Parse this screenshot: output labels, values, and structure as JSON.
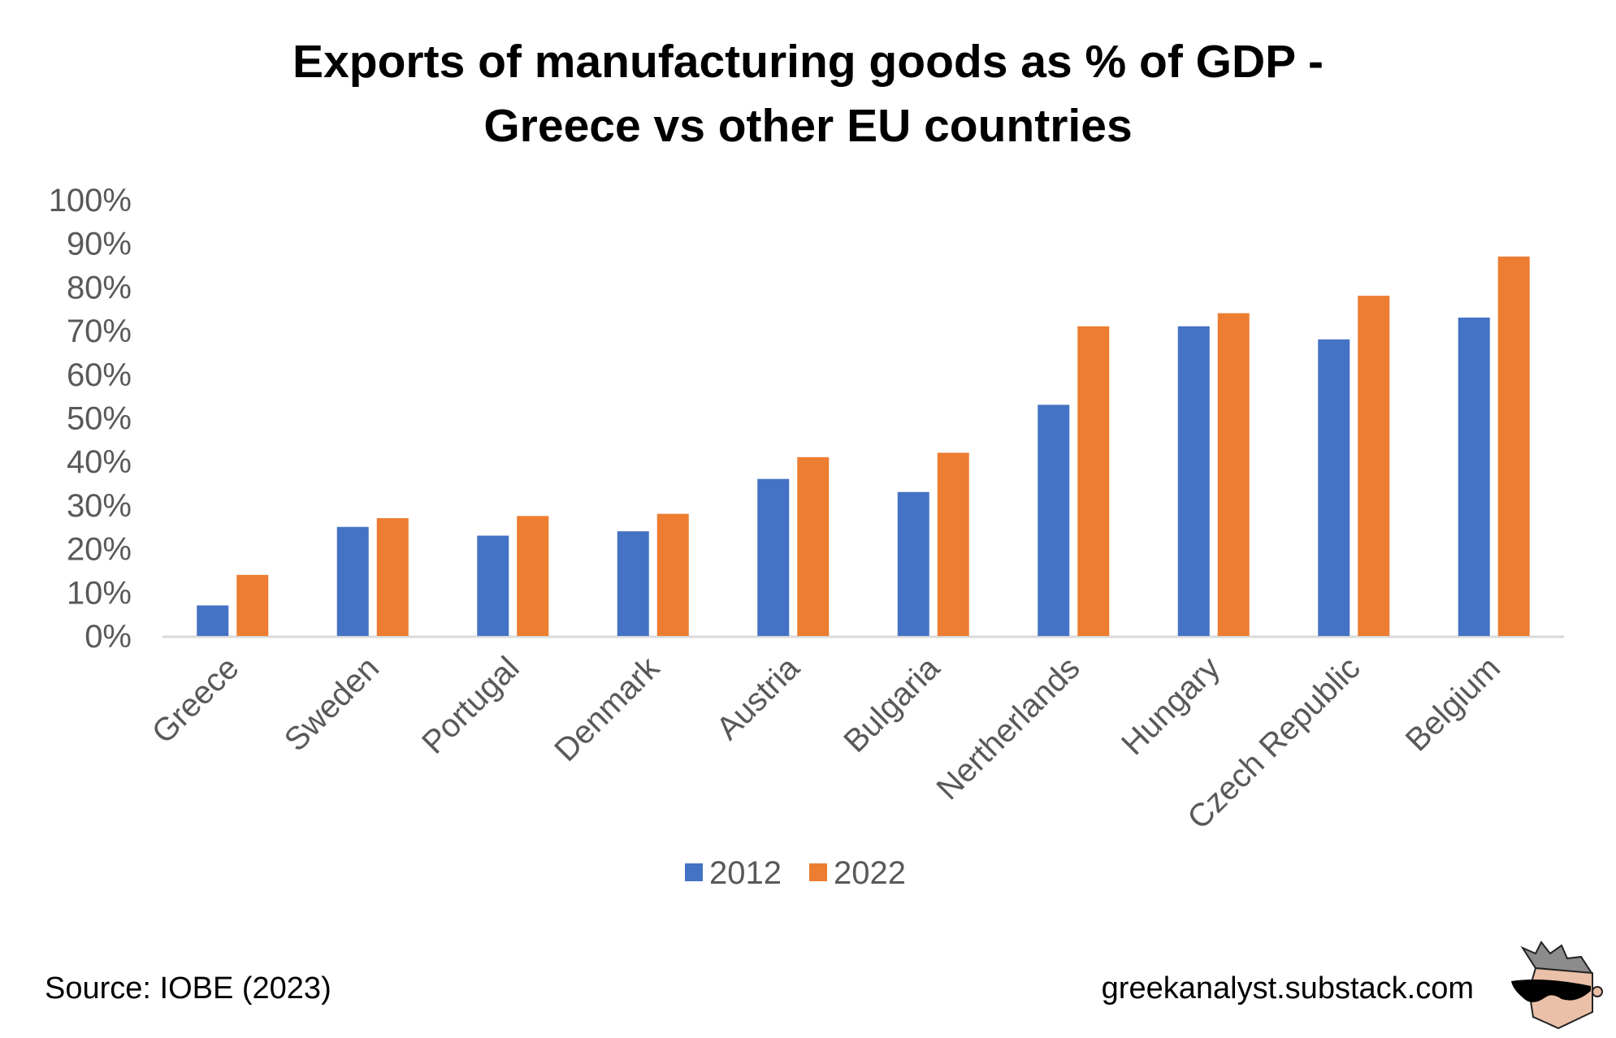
{
  "chart_data": {
    "type": "bar",
    "title": [
      "Exports of manufacturing goods as % of GDP -",
      "Greece vs other EU countries"
    ],
    "categories": [
      "Greece",
      "Sweden",
      "Portugal",
      "Denmark",
      "Austria",
      "Bulgaria",
      "Nertherlands",
      "Hungary",
      "Czech Republic",
      "Belgium"
    ],
    "series": [
      {
        "name": "2012",
        "color": "#4472C4",
        "values": [
          7,
          25,
          23,
          24,
          36,
          33,
          53,
          71,
          68,
          73
        ]
      },
      {
        "name": "2022",
        "color": "#ED7D31",
        "values": [
          14,
          27,
          27.5,
          28,
          41,
          42,
          71,
          74,
          78,
          87
        ]
      }
    ],
    "ylim": [
      0,
      100
    ],
    "yticks": [
      "0%",
      "10%",
      "20%",
      "30%",
      "40%",
      "50%",
      "60%",
      "70%",
      "80%",
      "90%",
      "100%"
    ],
    "xlabel": "",
    "ylabel": "",
    "grid": false,
    "legend": "bottom"
  },
  "footer": {
    "source": "Source: IOBE (2023)",
    "site": "greekanalyst.substack.com",
    "logo": "cartoon-head-with-sunglasses-logo"
  }
}
